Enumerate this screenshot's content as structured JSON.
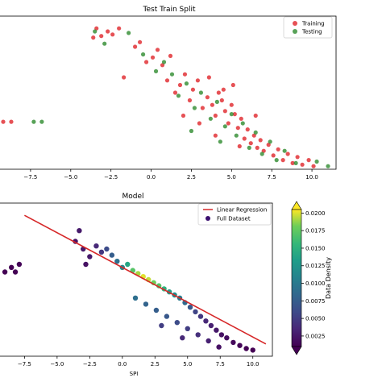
{
  "chart_data": [
    {
      "type": "scatter",
      "title": "Test Train Split",
      "xlabel": "",
      "ylabel": "",
      "xlim": [
        -9.5,
        11.5
      ],
      "ylim": [
        0,
        1
      ],
      "yaxis_ticks_visible": false,
      "xticks": [
        -7.5,
        -5.0,
        -2.5,
        0.0,
        2.5,
        5.0,
        7.5,
        10.0
      ],
      "xtick_labels": [
        "−7.5",
        "−5.0",
        "−2.5",
        "0.0",
        "2.5",
        "5.0",
        "7.5",
        "10.0"
      ],
      "legend_position": "top-right",
      "series": [
        {
          "name": "Training",
          "color": "#e0262a",
          "points": [
            [
              -9.2,
              0.31
            ],
            [
              -8.7,
              0.31
            ],
            [
              -3.6,
              0.86
            ],
            [
              -3.4,
              0.92
            ],
            [
              -3.1,
              0.87
            ],
            [
              -2.7,
              0.9
            ],
            [
              -2.4,
              0.88
            ],
            [
              -2.0,
              0.92
            ],
            [
              -1.7,
              0.6
            ],
            [
              -1.0,
              0.8
            ],
            [
              -0.7,
              0.83
            ],
            [
              -0.3,
              0.7
            ],
            [
              0.1,
              0.73
            ],
            [
              0.4,
              0.78
            ],
            [
              0.7,
              0.68
            ],
            [
              1.0,
              0.58
            ],
            [
              1.2,
              0.74
            ],
            [
              1.5,
              0.5
            ],
            [
              1.8,
              0.55
            ],
            [
              2.1,
              0.62
            ],
            [
              2.4,
              0.45
            ],
            [
              2.6,
              0.52
            ],
            [
              2.9,
              0.58
            ],
            [
              3.2,
              0.4
            ],
            [
              3.5,
              0.47
            ],
            [
              3.8,
              0.42
            ],
            [
              4.0,
              0.35
            ],
            [
              4.2,
              0.5
            ],
            [
              4.4,
              0.45
            ],
            [
              4.6,
              0.38
            ],
            [
              4.8,
              0.3
            ],
            [
              5.0,
              0.42
            ],
            [
              5.2,
              0.36
            ],
            [
              5.4,
              0.27
            ],
            [
              5.6,
              0.33
            ],
            [
              5.8,
              0.2
            ],
            [
              6.0,
              0.26
            ],
            [
              6.2,
              0.17
            ],
            [
              6.4,
              0.22
            ],
            [
              6.6,
              0.14
            ],
            [
              6.8,
              0.19
            ],
            [
              7.0,
              0.12
            ],
            [
              7.3,
              0.16
            ],
            [
              7.6,
              0.09
            ],
            [
              7.9,
              0.13
            ],
            [
              8.2,
              0.06
            ],
            [
              8.5,
              0.1
            ],
            [
              8.8,
              0.04
            ],
            [
              9.1,
              0.08
            ],
            [
              9.4,
              0.03
            ],
            [
              9.8,
              0.06
            ],
            [
              10.1,
              0.02
            ],
            [
              4.5,
              0.52
            ],
            [
              3.0,
              0.3
            ],
            [
              5.5,
              0.15
            ],
            [
              2.0,
              0.35
            ],
            [
              6.5,
              0.35
            ],
            [
              4.0,
              0.22
            ],
            [
              3.6,
              0.6
            ],
            [
              5.1,
              0.55
            ]
          ]
        },
        {
          "name": "Testing",
          "color": "#2e8b2e",
          "points": [
            [
              -7.3,
              0.31
            ],
            [
              -6.8,
              0.31
            ],
            [
              -3.5,
              0.9
            ],
            [
              -2.9,
              0.82
            ],
            [
              -1.4,
              0.89
            ],
            [
              -0.5,
              0.75
            ],
            [
              0.3,
              0.64
            ],
            [
              0.8,
              0.7
            ],
            [
              1.3,
              0.62
            ],
            [
              1.7,
              0.48
            ],
            [
              2.2,
              0.56
            ],
            [
              2.7,
              0.4
            ],
            [
              3.1,
              0.5
            ],
            [
              3.7,
              0.33
            ],
            [
              4.1,
              0.44
            ],
            [
              4.6,
              0.28
            ],
            [
              5.0,
              0.36
            ],
            [
              5.3,
              0.22
            ],
            [
              5.7,
              0.3
            ],
            [
              6.1,
              0.14
            ],
            [
              6.5,
              0.24
            ],
            [
              6.9,
              0.1
            ],
            [
              7.4,
              0.18
            ],
            [
              7.8,
              0.06
            ],
            [
              8.3,
              0.12
            ],
            [
              9.0,
              0.04
            ],
            [
              10.3,
              0.05
            ],
            [
              11.0,
              0.02
            ],
            [
              4.3,
              0.18
            ],
            [
              2.5,
              0.25
            ]
          ]
        }
      ]
    },
    {
      "type": "scatter",
      "title": "Model",
      "xlabel": "SPI",
      "ylabel": "",
      "xlim": [
        -9.5,
        11.5
      ],
      "ylim": [
        0,
        1
      ],
      "yaxis_ticks_visible": false,
      "xticks": [
        -7.5,
        -5.0,
        -2.5,
        0.0,
        2.5,
        5.0,
        7.5,
        10.0
      ],
      "xtick_labels": [
        "−7.5",
        "−5.0",
        "−2.5",
        "0.0",
        "2.5",
        "5.0",
        "7.5",
        "10.0"
      ],
      "legend_position": "top-right",
      "line": {
        "name": "Linear Regression",
        "color": "#d62728",
        "x": [
          -7.5,
          11.0
        ],
        "y": [
          0.92,
          0.08
        ]
      },
      "series": [
        {
          "name": "Full Dataset",
          "colored_by": "Data Density",
          "points": [
            [
              -9.0,
              0.55,
              0.001
            ],
            [
              -8.5,
              0.58,
              0.001
            ],
            [
              -8.2,
              0.55,
              0.001
            ],
            [
              -7.9,
              0.6,
              0.0012
            ],
            [
              -3.6,
              0.75,
              0.002
            ],
            [
              -3.3,
              0.82,
              0.0025
            ],
            [
              -3.0,
              0.7,
              0.0025
            ],
            [
              -2.8,
              0.6,
              0.002
            ],
            [
              -2.5,
              0.65,
              0.0025
            ],
            [
              -2.0,
              0.72,
              0.0035
            ],
            [
              -1.6,
              0.68,
              0.0045
            ],
            [
              -1.2,
              0.7,
              0.006
            ],
            [
              -0.8,
              0.66,
              0.0075
            ],
            [
              -0.4,
              0.62,
              0.009
            ],
            [
              0.0,
              0.58,
              0.011
            ],
            [
              0.4,
              0.6,
              0.014
            ],
            [
              0.8,
              0.56,
              0.017
            ],
            [
              1.2,
              0.54,
              0.019
            ],
            [
              1.6,
              0.52,
              0.02
            ],
            [
              2.0,
              0.5,
              0.0195
            ],
            [
              2.4,
              0.48,
              0.018
            ],
            [
              2.8,
              0.46,
              0.017
            ],
            [
              3.2,
              0.44,
              0.015
            ],
            [
              3.6,
              0.42,
              0.013
            ],
            [
              4.0,
              0.4,
              0.0115
            ],
            [
              4.4,
              0.38,
              0.01
            ],
            [
              4.8,
              0.35,
              0.0085
            ],
            [
              5.2,
              0.32,
              0.007
            ],
            [
              5.6,
              0.29,
              0.0055
            ],
            [
              6.0,
              0.26,
              0.0045
            ],
            [
              6.4,
              0.23,
              0.0035
            ],
            [
              6.8,
              0.2,
              0.003
            ],
            [
              7.2,
              0.17,
              0.0025
            ],
            [
              7.6,
              0.14,
              0.002
            ],
            [
              8.0,
              0.12,
              0.0018
            ],
            [
              8.5,
              0.09,
              0.0015
            ],
            [
              9.0,
              0.07,
              0.0012
            ],
            [
              9.5,
              0.05,
              0.001
            ],
            [
              10.0,
              0.04,
              0.001
            ],
            [
              1.0,
              0.38,
              0.009
            ],
            [
              1.8,
              0.34,
              0.008
            ],
            [
              2.6,
              0.3,
              0.0075
            ],
            [
              3.4,
              0.26,
              0.007
            ],
            [
              4.2,
              0.22,
              0.006
            ],
            [
              5.0,
              0.18,
              0.005
            ],
            [
              5.8,
              0.14,
              0.004
            ],
            [
              6.6,
              0.1,
              0.003
            ],
            [
              3.0,
              0.2,
              0.005
            ],
            [
              4.6,
              0.12,
              0.0035
            ],
            [
              7.4,
              0.06,
              0.002
            ]
          ]
        }
      ],
      "colorbar": {
        "label": "Data Density",
        "min": 0.001,
        "max": 0.0205,
        "ticks": [
          0.0025,
          0.005,
          0.0075,
          0.01,
          0.0125,
          0.015,
          0.0175,
          0.02
        ],
        "tick_labels": [
          "0.0025",
          "0.0050",
          "0.0075",
          "0.0100",
          "0.0125",
          "0.0150",
          "0.0175",
          "0.0200"
        ],
        "colormap": "viridis"
      }
    }
  ]
}
